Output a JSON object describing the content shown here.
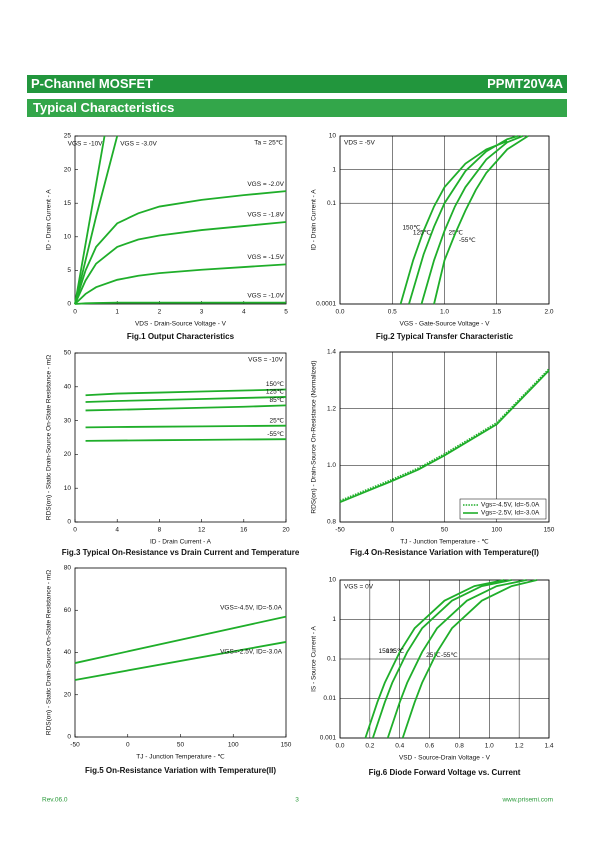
{
  "header": {
    "left": "P-Channel MOSFET",
    "right": "PPMT20V4A",
    "section": "Typical Characteristics"
  },
  "footer": {
    "left": "Rev.06.0",
    "center": "3",
    "right": "www.prisemi.com"
  },
  "chart_data": [
    {
      "type": "line",
      "title": "Fig.1 Output Characteristics",
      "xlabel": "VDS - Drain-Source Voltage - V",
      "ylabel": "ID - Drain Current - A",
      "annotation": "Ta = 25℃",
      "color": "#1fae2a",
      "grid": false,
      "xlim": [
        0,
        5
      ],
      "ylim": [
        0,
        25
      ],
      "xticks": [
        0,
        1,
        2,
        3,
        4,
        5
      ],
      "yticks": [
        0,
        5,
        10,
        15,
        20,
        25
      ],
      "x": [
        0,
        0.25,
        0.5,
        1,
        1.5,
        2,
        3,
        4,
        5
      ],
      "series": [
        {
          "name": "VGS = -10V",
          "x": [
            0,
            0.7
          ],
          "values": [
            0,
            25
          ]
        },
        {
          "name": "VGS = -3.0V",
          "x": [
            0,
            0.5,
            1.0
          ],
          "values": [
            0,
            13,
            25
          ]
        },
        {
          "name": "VGS = -2.0V",
          "values": [
            0,
            5,
            8.5,
            12,
            13.5,
            14.5,
            15.5,
            16.2,
            16.8
          ]
        },
        {
          "name": "VGS = -1.8V",
          "values": [
            0,
            3.5,
            6,
            8.5,
            9.6,
            10.2,
            11,
            11.6,
            12.2
          ]
        },
        {
          "name": "VGS = -1.5V",
          "values": [
            0,
            1.5,
            2.5,
            3.6,
            4.2,
            4.6,
            5.1,
            5.5,
            5.9
          ]
        },
        {
          "name": "VGS = -1.0V",
          "values": [
            0,
            0.1,
            0.15,
            0.2,
            0.2,
            0.2,
            0.2,
            0.2,
            0.2
          ]
        }
      ]
    },
    {
      "type": "line",
      "title": "Fig.2 Typical Transfer Characteristic",
      "xlabel": "VGS - Gate-Source Voltage - V",
      "ylabel": "ID - Drain Current - A",
      "annotation": "VDS = -5V",
      "color": "#1fae2a",
      "grid": true,
      "yscale": "log",
      "xlim": [
        0,
        2
      ],
      "ylim": [
        0.0001,
        10
      ],
      "xticks": [
        {
          "value": 0,
          "label": "0.0"
        },
        0.5,
        {
          "value": 1,
          "label": "1.0"
        },
        1.5,
        {
          "value": 2,
          "label": "2.0"
        }
      ],
      "yticks": [
        0.0001,
        0.1,
        1,
        10
      ],
      "series": [
        {
          "name": "150℃",
          "x": [
            0.58,
            0.7,
            0.8,
            0.9,
            1.0,
            1.2,
            1.4,
            1.6
          ],
          "values": [
            0.0001,
            0.002,
            0.015,
            0.08,
            0.3,
            1.5,
            4,
            7
          ]
        },
        {
          "name": "125℃",
          "x": [
            0.66,
            0.8,
            0.9,
            1.0,
            1.2,
            1.4,
            1.6,
            1.7
          ],
          "values": [
            0.0001,
            0.003,
            0.02,
            0.1,
            0.9,
            3.5,
            8,
            10
          ]
        },
        {
          "name": "25℃",
          "x": [
            0.78,
            0.9,
            1.0,
            1.1,
            1.2,
            1.4,
            1.6,
            1.75
          ],
          "values": [
            0.0001,
            0.002,
            0.015,
            0.08,
            0.3,
            2,
            6.5,
            10
          ]
        },
        {
          "name": "-55℃",
          "x": [
            0.9,
            1.0,
            1.1,
            1.2,
            1.3,
            1.4,
            1.6,
            1.8
          ],
          "values": [
            0.0001,
            0.002,
            0.012,
            0.06,
            0.25,
            0.8,
            4,
            10
          ]
        }
      ]
    },
    {
      "type": "line",
      "title": "Fig.3 Typical On-Resistance vs Drain Current and Temperature",
      "xlabel": "ID - Drain Current - A",
      "ylabel": "RDS(on) - Static Drain-Source On-State Resistance - mΩ",
      "annotation": "VGS = -10V",
      "color": "#1fae2a",
      "grid": false,
      "xlim": [
        0,
        20
      ],
      "ylim": [
        0,
        50
      ],
      "xticks": [
        0,
        4,
        8,
        12,
        16,
        20
      ],
      "yticks": [
        0,
        10,
        20,
        30,
        40,
        50
      ],
      "x": [
        1,
        4,
        8,
        12,
        16,
        20
      ],
      "series": [
        {
          "name": "150℃",
          "values": [
            37.5,
            38,
            38.3,
            38.6,
            38.9,
            39.2
          ]
        },
        {
          "name": "125℃",
          "values": [
            35.5,
            35.8,
            36.1,
            36.4,
            36.7,
            37
          ]
        },
        {
          "name": "85℃",
          "values": [
            33,
            33.2,
            33.5,
            33.8,
            34.1,
            34.5
          ]
        },
        {
          "name": "25℃",
          "values": [
            28,
            28.1,
            28.2,
            28.3,
            28.4,
            28.5
          ]
        },
        {
          "name": "-55℃",
          "values": [
            24,
            24.1,
            24.2,
            24.3,
            24.4,
            24.5
          ]
        }
      ]
    },
    {
      "type": "line",
      "title": "Fig.4 On-Resistance Variation with Temperature(I)",
      "xlabel": "TJ - Junction Temperature - ℃",
      "ylabel": "RDS(on) - Drain-Source On-Resistance (Normalized)",
      "color": "#1fae2a",
      "grid": true,
      "legend": "lower right",
      "xlim": [
        -50,
        150
      ],
      "ylim": [
        0.8,
        1.4
      ],
      "xticks": [
        -50,
        0,
        50,
        100,
        150
      ],
      "yticks": [
        0.8,
        {
          "value": 1,
          "label": "1.0"
        },
        1.2,
        1.4
      ],
      "x": [
        -50,
        0,
        25,
        50,
        100,
        150
      ],
      "series": [
        {
          "name": "Vgs=-4.5V, Id=-5.0A",
          "style": "dotted",
          "values": [
            0.875,
            0.95,
            0.99,
            1.04,
            1.15,
            1.34
          ]
        },
        {
          "name": "Vgs=-2.5V, Id=-3.0A",
          "values": [
            0.87,
            0.945,
            0.985,
            1.035,
            1.145,
            1.335
          ]
        }
      ]
    },
    {
      "type": "line",
      "title": "Fig.5 On-Resistance Variation with Temperature(II)",
      "xlabel": "TJ - Junction Temperature - ℃",
      "ylabel": "RDS(on) - Static Drain-Source On-State Resistance - mΩ",
      "color": "#1fae2a",
      "grid": false,
      "xlim": [
        -50,
        150
      ],
      "ylim": [
        0,
        80
      ],
      "xticks": [
        -50,
        0,
        50,
        100,
        150
      ],
      "yticks": [
        0,
        20,
        40,
        60,
        80
      ],
      "x": [
        -50,
        150
      ],
      "series": [
        {
          "name": "VGS=-4.5V, ID=-5.0A",
          "values": [
            35,
            57
          ]
        },
        {
          "name": "VGS=-2.5V, ID=-3.0A",
          "values": [
            27,
            45
          ]
        }
      ]
    },
    {
      "type": "line",
      "title": "Fig.6 Diode Forward Voltage vs. Current",
      "xlabel": "VSD - Source-Drain Voltage - V",
      "ylabel": "IS - Source Current - A",
      "annotation": "VGS = 0V",
      "color": "#1fae2a",
      "grid": true,
      "yscale": "log",
      "xlim": [
        0,
        1.4
      ],
      "ylim": [
        0.001,
        10
      ],
      "xticks": [
        {
          "value": 0,
          "label": "0.0"
        },
        0.2,
        0.4,
        0.6,
        0.8,
        {
          "value": 1,
          "label": "1.0"
        },
        1.2,
        1.4
      ],
      "yticks": [
        0.001,
        0.01,
        0.1,
        1,
        10
      ],
      "series": [
        {
          "name": "150℃",
          "x": [
            0.17,
            0.25,
            0.3,
            0.4,
            0.5,
            0.7,
            0.9,
            1.1
          ],
          "values": [
            0.001,
            0.008,
            0.025,
            0.15,
            0.6,
            3,
            7,
            10
          ]
        },
        {
          "name": "125℃",
          "x": [
            0.22,
            0.3,
            0.35,
            0.45,
            0.55,
            0.75,
            0.95,
            1.15
          ],
          "values": [
            0.001,
            0.008,
            0.025,
            0.15,
            0.6,
            3,
            7,
            10
          ]
        },
        {
          "name": "25℃",
          "x": [
            0.32,
            0.4,
            0.45,
            0.55,
            0.65,
            0.85,
            1.05,
            1.25
          ],
          "values": [
            0.001,
            0.008,
            0.025,
            0.15,
            0.6,
            3,
            7,
            10
          ]
        },
        {
          "name": "-55℃",
          "x": [
            0.42,
            0.5,
            0.55,
            0.65,
            0.75,
            0.95,
            1.15,
            1.32
          ],
          "values": [
            0.001,
            0.008,
            0.025,
            0.15,
            0.6,
            3,
            7,
            10
          ]
        }
      ]
    }
  ]
}
